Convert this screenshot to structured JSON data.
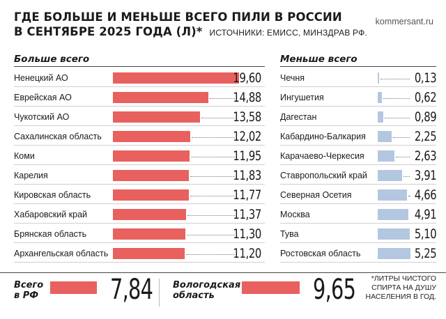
{
  "header": {
    "title_line1": "ГДЕ БОЛЬШЕ И МЕНЬШЕ ВСЕГО ПИЛИ В РОССИИ",
    "title_line2": "В СЕНТЯБРЕ 2025 ГОДА (Л)*",
    "sources": "ИСТОЧНИКИ: ЕМИСС, МИНЗДРАВ РФ.",
    "site": "kommersant.ru"
  },
  "colors": {
    "more": "#e8615e",
    "less": "#b4c7e0"
  },
  "chart_data": [
    {
      "type": "bar",
      "title": "Больше всего",
      "categories": [
        "Ненецкий АО",
        "Еврейская АО",
        "Чукотский АО",
        "Сахалинская область",
        "Коми",
        "Карелия",
        "Кировская область",
        "Хабаровский край",
        "Брянская область",
        "Архангельская область"
      ],
      "values": [
        19.6,
        14.88,
        13.58,
        12.02,
        11.95,
        11.83,
        11.77,
        11.37,
        11.3,
        11.2
      ],
      "value_labels": [
        "19,60",
        "14,88",
        "13,58",
        "12,02",
        "11,95",
        "11,83",
        "11,77",
        "11,37",
        "11,30",
        "11,20"
      ]
    },
    {
      "type": "bar",
      "title": "Меньше всего",
      "categories": [
        "Чечня",
        "Ингушетия",
        "Дагестан",
        "Кабардино-Балкария",
        "Карачаево-Черкесия",
        "Ставропольский край",
        "Северная Осетия",
        "Москва",
        "Тува",
        "Ростовская область"
      ],
      "values": [
        0.13,
        0.62,
        0.89,
        2.25,
        2.63,
        3.91,
        4.66,
        4.91,
        5.1,
        5.25
      ],
      "value_labels": [
        "0,13",
        "0,62",
        "0,89",
        "2,25",
        "2,63",
        "3,91",
        "4,66",
        "4,91",
        "5,10",
        "5,25"
      ]
    }
  ],
  "totals": {
    "russia": {
      "label_line1": "Всего",
      "label_line2": "в РФ",
      "value": 7.84,
      "value_label": "7,84"
    },
    "vologda": {
      "label_line1": "Вологодская",
      "label_line2": "область",
      "value": 9.65,
      "value_label": "9,65"
    }
  },
  "footnote": {
    "line1": "*ЛИТРЫ ЧИСТОГО",
    "line2": "СПИРТА НА ДУШУ",
    "line3": "НАСЕЛЕНИЯ В ГОД."
  }
}
